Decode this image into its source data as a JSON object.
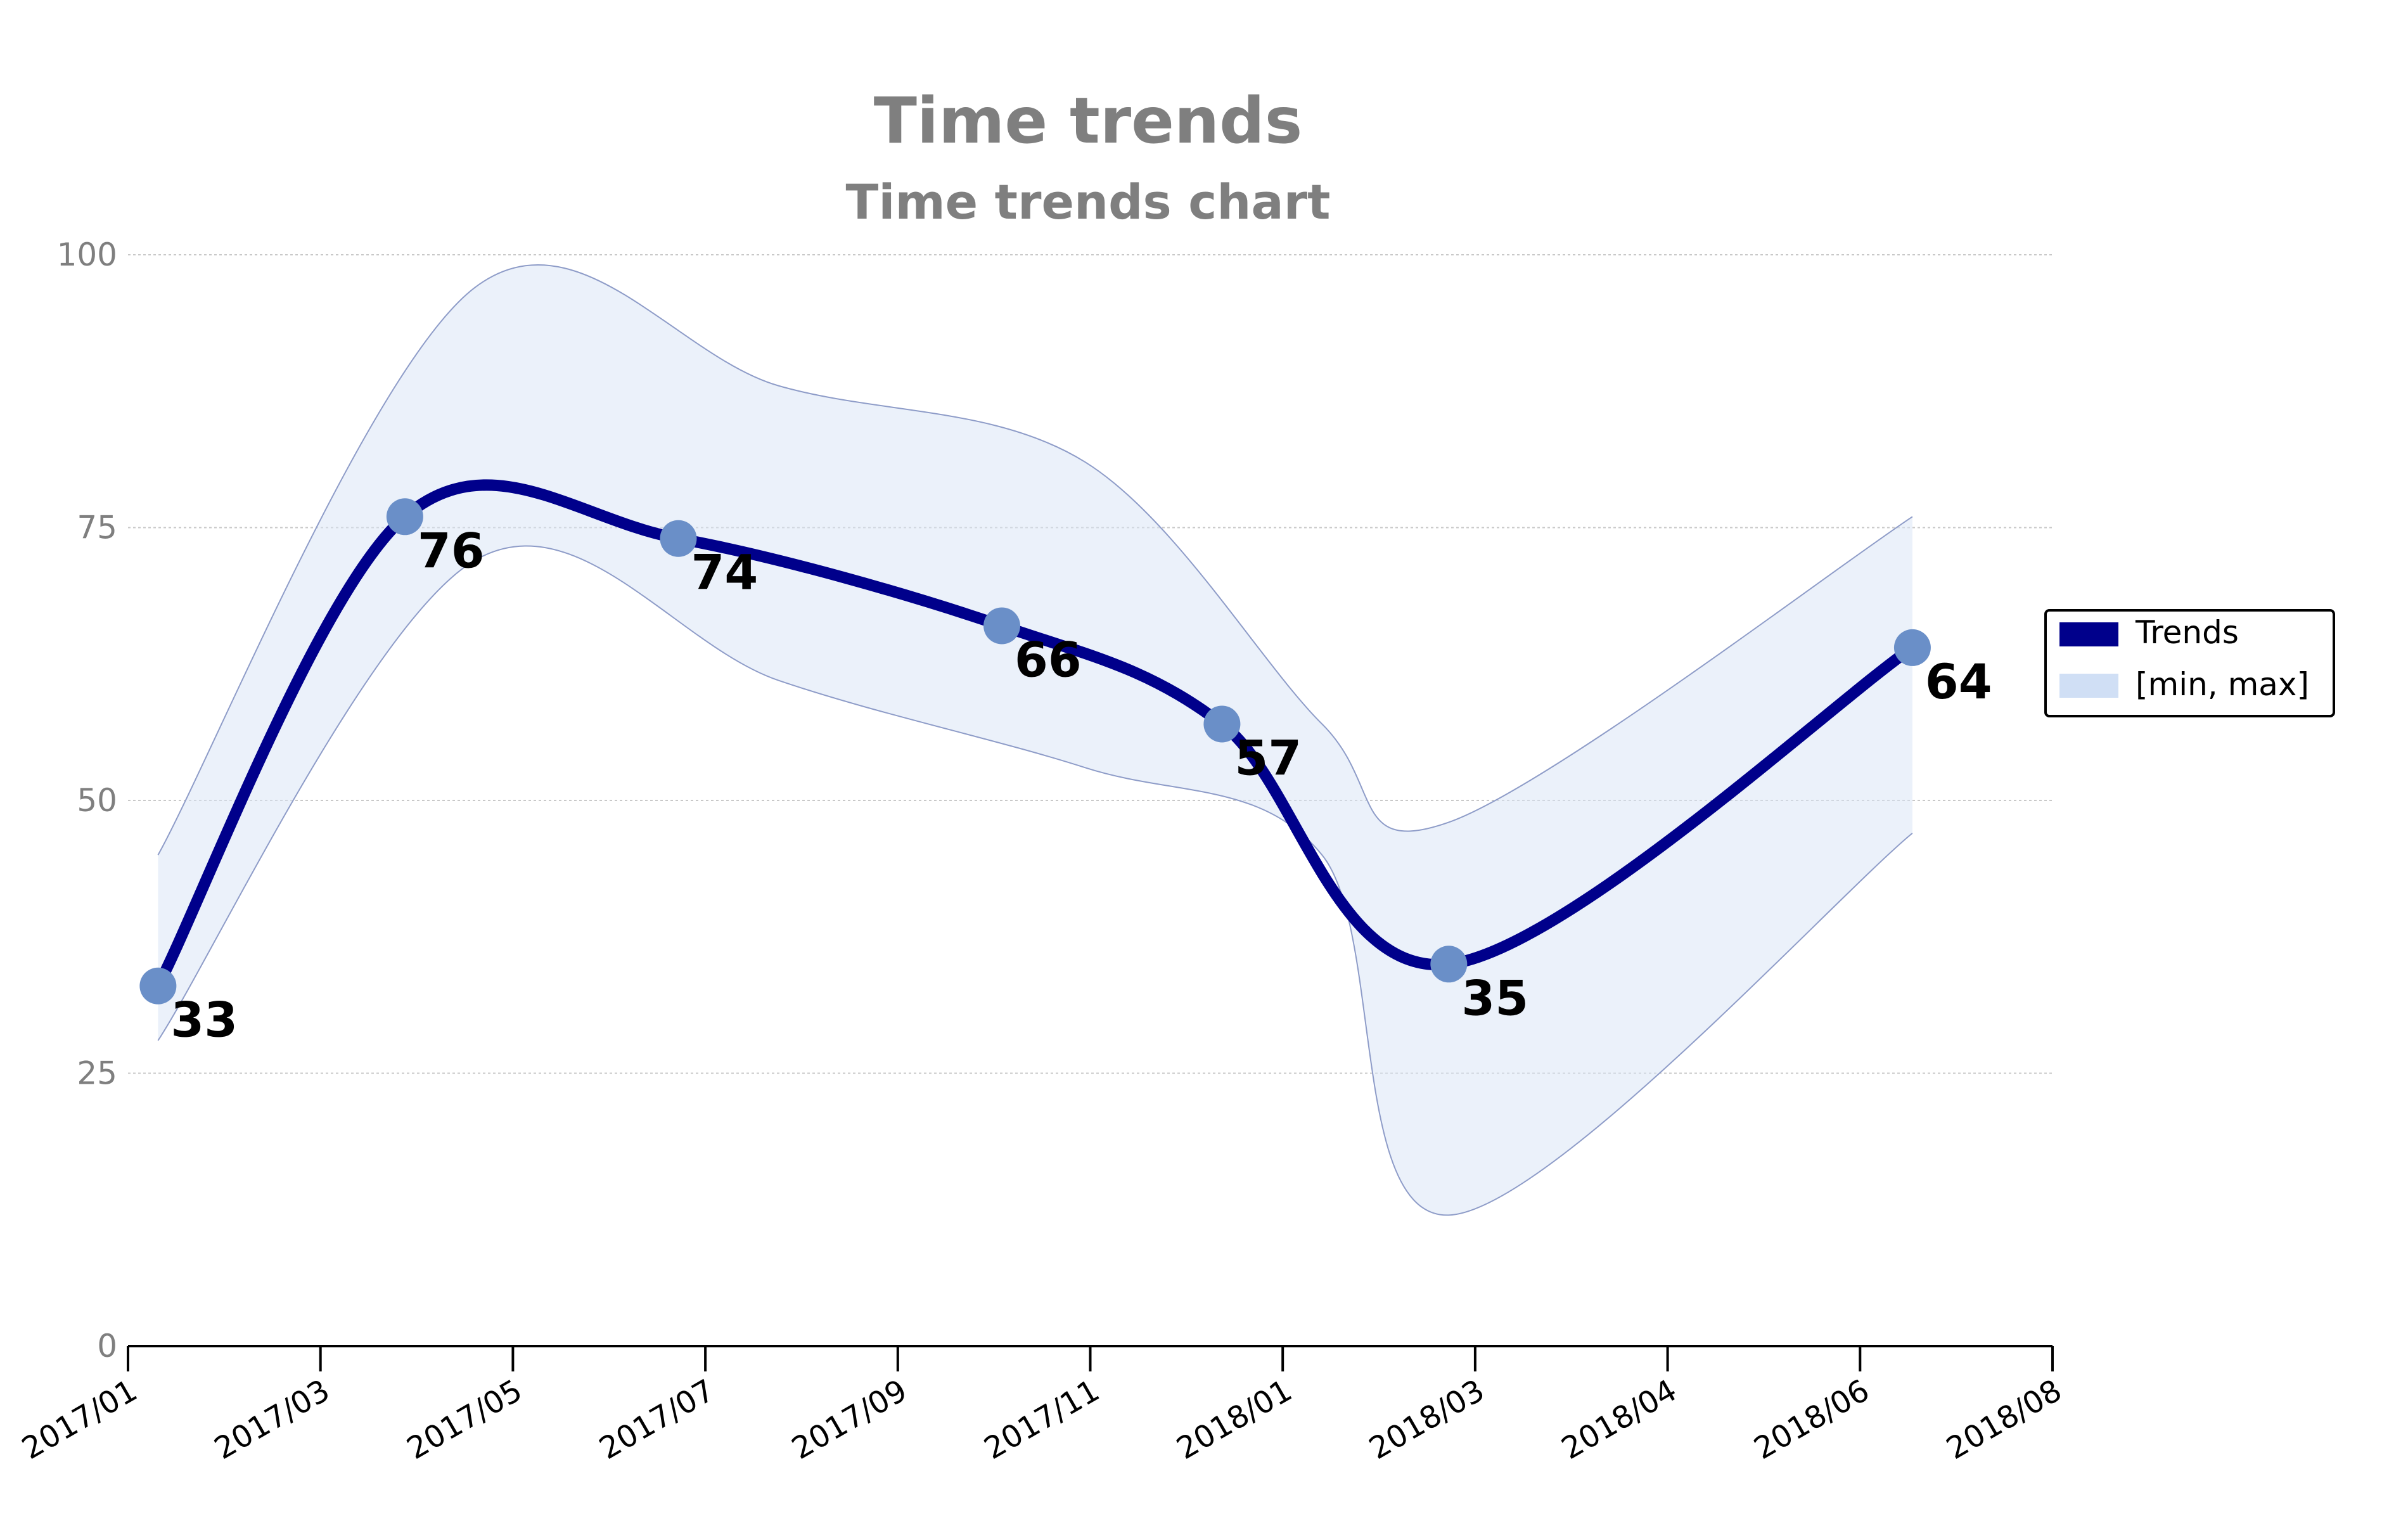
{
  "chart_data": {
    "type": "line",
    "title": "Time trends",
    "subtitle": "Time trends chart",
    "xlabel": "",
    "ylabel": "",
    "x_range": [
      "2017/01",
      "2018/08"
    ],
    "x_ticks": [
      "2017/01",
      "2017/03",
      "2017/05",
      "2017/07",
      "2017/09",
      "2017/11",
      "2018/01",
      "2018/03",
      "2018/04",
      "2018/06",
      "2018/08"
    ],
    "ylim": [
      0,
      100
    ],
    "y_ticks": [
      0,
      25,
      50,
      75,
      100
    ],
    "grid": true,
    "grid_axis": "y",
    "legend_position": "right",
    "series": [
      {
        "name": "Trends",
        "color": "#00008b",
        "marker_color": "#6a8fc8",
        "x": [
          "2017/01/10",
          "2017/03/25",
          "2017/06/15",
          "2017/09/20",
          "2017/11/25",
          "2018/02/01",
          "2018/06/20"
        ],
        "values": [
          33,
          76,
          74,
          66,
          57,
          35,
          64
        ]
      },
      {
        "name": "[min, max]",
        "color": "#d0dff5",
        "x": [
          "2017/01/10",
          "2017/04/15",
          "2017/07/15",
          "2017/10/15",
          "2017/12/25",
          "2018/02/01",
          "2018/06/20"
        ],
        "min": [
          28,
          72,
          61,
          53,
          45,
          12,
          47
        ],
        "max": [
          45,
          97,
          88,
          81,
          57,
          48,
          76
        ]
      }
    ]
  }
}
